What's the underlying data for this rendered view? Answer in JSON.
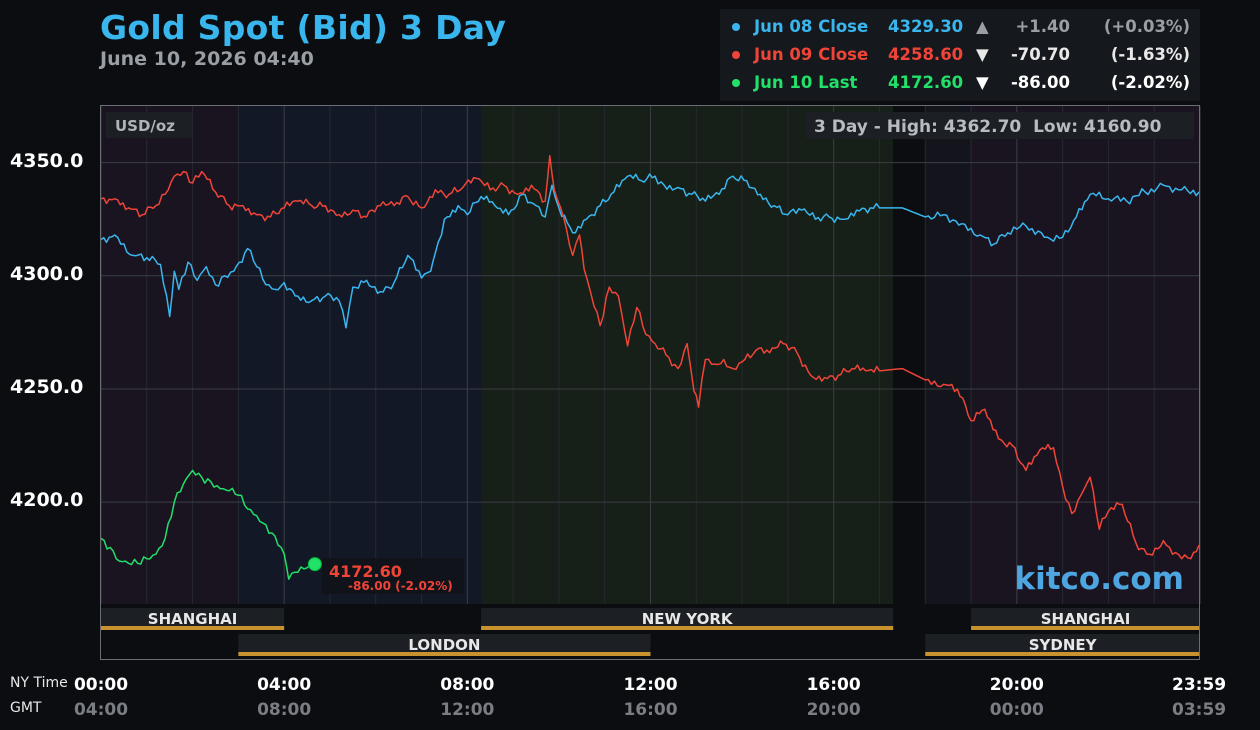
{
  "header": {
    "title": "Gold Spot (Bid) 3 Day",
    "datetime": "June 10, 2026 04:40"
  },
  "legend": [
    {
      "label": "Jun 08 Close",
      "value": "4329.30",
      "arrow": "▲",
      "change": "+1.40",
      "pct": "(+0.03%)",
      "color": "#39b6ee",
      "change_color": "#9a9fa6"
    },
    {
      "label": "Jun 09 Close",
      "value": "4258.60",
      "arrow": "▼",
      "change": "-70.70",
      "pct": "(-1.63%)",
      "color": "#f04438",
      "change_color": "#e8e8e8"
    },
    {
      "label": "Jun 10 Last",
      "value": "4172.60",
      "arrow": "▼",
      "change": "-86.00",
      "pct": "(-2.02%)",
      "color": "#22e06a",
      "change_color": "#ffffff"
    }
  ],
  "units": "USD/oz",
  "stats": {
    "label": "3 Day - High: 4362.70  Low: 4160.90"
  },
  "last_label": {
    "value": "4172.60",
    "change": "-86.00 (-2.02%)"
  },
  "watermark": "kitco.com",
  "axis_captions": {
    "ny": "NY Time",
    "gmt": "GMT"
  },
  "sessions": [
    {
      "name": "SHANGHAI",
      "start": 0,
      "end": 4,
      "row": 1
    },
    {
      "name": "NEW YORK",
      "start": 8.3,
      "end": 17.3,
      "row": 1
    },
    {
      "name": "SHANGHAI",
      "start": 19,
      "end": 24,
      "row": 1
    },
    {
      "name": "LONDON",
      "start": 3,
      "end": 12,
      "row": 2
    },
    {
      "name": "SYDNEY",
      "start": 18,
      "end": 24,
      "row": 2
    }
  ],
  "chart_data": {
    "type": "line",
    "title": "Gold Spot (Bid) 3 Day",
    "ylabel": "USD/oz",
    "x_unit": "hours (NY time)",
    "xlim": [
      0,
      24
    ],
    "ylim": [
      4155,
      4375
    ],
    "y_ticks": [
      4200.0,
      4250.0,
      4300.0,
      4350.0
    ],
    "y_tick_labels": [
      "4200.0",
      "4250.0",
      "4300.0",
      "4350.0"
    ],
    "x_ticks": [
      0,
      4,
      8,
      12,
      16,
      20,
      23.98
    ],
    "x_tick_labels_ny": [
      "00:00",
      "04:00",
      "08:00",
      "12:00",
      "16:00",
      "20:00",
      "23:59"
    ],
    "x_tick_labels_gmt": [
      "04:00",
      "08:00",
      "12:00",
      "16:00",
      "20:00",
      "00:00",
      "03:59"
    ],
    "grid": true,
    "series": [
      {
        "name": "Jun 08",
        "color": "#39b6ee",
        "x": [
          0,
          0.3,
          0.7,
          1.0,
          1.3,
          1.5,
          1.6,
          1.7,
          1.9,
          2.1,
          2.3,
          2.5,
          2.7,
          2.9,
          3.2,
          3.4,
          3.6,
          3.8,
          4.0,
          4.3,
          4.6,
          4.9,
          5.2,
          5.35,
          5.5,
          5.8,
          6.1,
          6.4,
          6.7,
          7.0,
          7.2,
          7.3,
          7.5,
          7.8,
          8.0,
          8.3,
          8.6,
          8.9,
          9.2,
          9.5,
          9.7,
          9.85,
          10.0,
          10.3,
          10.6,
          10.9,
          11.2,
          11.5,
          11.8,
          12.1,
          12.3,
          12.6,
          12.9,
          13.2,
          13.5,
          13.8,
          14.1,
          14.4,
          14.7,
          15.0,
          15.3,
          15.6,
          15.9,
          16.2,
          16.5,
          16.8,
          17.0,
          17.5,
          18.0,
          18.4,
          18.8,
          19.2,
          19.5,
          19.8,
          20.2,
          20.6,
          21.0,
          21.3,
          21.6,
          22.0,
          22.4,
          22.8,
          23.2,
          23.6,
          23.98
        ],
        "y": [
          4316,
          4318,
          4309,
          4308,
          4305,
          4282,
          4302,
          4294,
          4306,
          4298,
          4304,
          4296,
          4300,
          4302,
          4312,
          4304,
          4296,
          4294,
          4297,
          4291,
          4289,
          4291,
          4289,
          4277,
          4295,
          4298,
          4293,
          4297,
          4309,
          4299,
          4302,
          4310,
          4325,
          4331,
          4327,
          4335,
          4331,
          4327,
          4336,
          4331,
          4326,
          4340,
          4330,
          4319,
          4325,
          4331,
          4337,
          4344,
          4342,
          4344,
          4340,
          4339,
          4336,
          4333,
          4336,
          4344,
          4342,
          4336,
          4331,
          4327,
          4329,
          4325,
          4326,
          4325,
          4329,
          4330,
          4330,
          4330,
          4326,
          4327,
          4323,
          4318,
          4314,
          4319,
          4322,
          4317,
          4317,
          4326,
          4336,
          4334,
          4333,
          4337,
          4340,
          4338,
          4337
        ]
      },
      {
        "name": "Jun 09",
        "color": "#f04438",
        "x": [
          0,
          0.3,
          0.6,
          0.9,
          1.2,
          1.4,
          1.6,
          1.8,
          2.0,
          2.2,
          2.5,
          2.8,
          3.1,
          3.4,
          3.7,
          4.0,
          4.3,
          4.6,
          4.9,
          5.2,
          5.5,
          5.8,
          6.1,
          6.4,
          6.7,
          7.0,
          7.3,
          7.6,
          7.9,
          8.2,
          8.5,
          8.8,
          9.1,
          9.4,
          9.7,
          9.8,
          9.9,
          10.1,
          10.3,
          10.45,
          10.55,
          10.7,
          10.9,
          11.1,
          11.3,
          11.5,
          11.7,
          11.9,
          12.1,
          12.4,
          12.6,
          12.8,
          12.95,
          13.05,
          13.2,
          13.4,
          13.6,
          13.8,
          14.0,
          14.3,
          14.6,
          14.9,
          15.2,
          15.5,
          15.8,
          16.1,
          16.4,
          16.7,
          17.0,
          17.5,
          18.0,
          18.4,
          18.7,
          19.0,
          19.3,
          19.6,
          19.9,
          20.2,
          20.5,
          20.8,
          21.0,
          21.2,
          21.4,
          21.6,
          21.8,
          22.0,
          22.3,
          22.6,
          22.9,
          23.2,
          23.4,
          23.6,
          23.8,
          23.98
        ],
        "y": [
          4334,
          4334,
          4330,
          4327,
          4331,
          4336,
          4344,
          4346,
          4341,
          4346,
          4337,
          4331,
          4331,
          4327,
          4326,
          4330,
          4333,
          4331,
          4331,
          4327,
          4329,
          4326,
          4331,
          4331,
          4335,
          4330,
          4338,
          4336,
          4339,
          4343,
          4338,
          4340,
          4336,
          4340,
          4333,
          4353,
          4338,
          4326,
          4309,
          4318,
          4303,
          4292,
          4278,
          4295,
          4291,
          4269,
          4286,
          4274,
          4270,
          4264,
          4259,
          4270,
          4249,
          4242,
          4263,
          4261,
          4263,
          4259,
          4262,
          4267,
          4266,
          4270,
          4266,
          4256,
          4255,
          4256,
          4259,
          4258,
          4258,
          4259,
          4254,
          4252,
          4250,
          4236,
          4241,
          4228,
          4225,
          4214,
          4223,
          4224,
          4207,
          4195,
          4203,
          4211,
          4188,
          4196,
          4199,
          4182,
          4177,
          4183,
          4177,
          4175,
          4175,
          4181
        ]
      },
      {
        "name": "Jun 10",
        "color": "#22e06a",
        "x": [
          0,
          0.2,
          0.4,
          0.6,
          0.8,
          1.0,
          1.2,
          1.4,
          1.6,
          1.8,
          2.0,
          2.2,
          2.4,
          2.6,
          2.8,
          3.0,
          3.2,
          3.4,
          3.6,
          3.8,
          4.0,
          4.1,
          4.3,
          4.5,
          4.67
        ],
        "y": [
          4184,
          4180,
          4174,
          4173,
          4173,
          4175,
          4177,
          4184,
          4200,
          4208,
          4214,
          4211,
          4209,
          4206,
          4205,
          4203,
          4197,
          4194,
          4190,
          4185,
          4177,
          4166,
          4169,
          4171,
          4172.6
        ]
      }
    ]
  }
}
